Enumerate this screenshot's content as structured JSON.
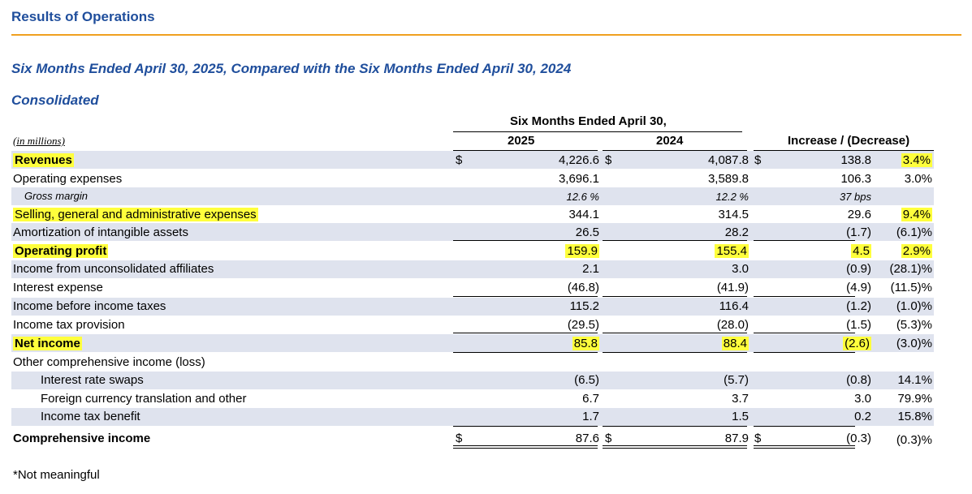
{
  "title": "Results of Operations",
  "subtitle": "Six Months Ended April 30, 2025, Compared with the Six Months Ended April 30, 2024",
  "section": "Consolidated",
  "units": "(in millions)",
  "group_header": "Six Months Ended April 30,",
  "col_2025": "2025",
  "col_2024": "2024",
  "col_change": "Increase / (Decrease)",
  "rows": [
    {
      "label": "Revenues",
      "v25": "4,226.6",
      "v24": "4,087.8",
      "inc": "138.8",
      "pct": "3.4%"
    },
    {
      "label": "Operating expenses",
      "v25": "3,696.1",
      "v24": "3,589.8",
      "inc": "106.3",
      "pct": "3.0%"
    },
    {
      "label": "Gross margin",
      "v25": "12.6 %",
      "v24": "12.2 %",
      "inc": "37 bps",
      "pct": ""
    },
    {
      "label": "Selling, general and administrative expenses",
      "v25": "344.1",
      "v24": "314.5",
      "inc": "29.6",
      "pct": "9.4%"
    },
    {
      "label": "Amortization of intangible assets",
      "v25": "26.5",
      "v24": "28.2",
      "inc": "(1.7)",
      "pct": "(6.1)%"
    },
    {
      "label": "Operating profit",
      "v25": "159.9",
      "v24": "155.4",
      "inc": "4.5",
      "pct": "2.9%"
    },
    {
      "label": "Income from unconsolidated affiliates",
      "v25": "2.1",
      "v24": "3.0",
      "inc": "(0.9)",
      "pct": "(28.1)%"
    },
    {
      "label": "Interest expense",
      "v25": "(46.8)",
      "v24": "(41.9)",
      "inc": "(4.9)",
      "pct": "(11.5)%"
    },
    {
      "label": "Income before income taxes",
      "v25": "115.2",
      "v24": "116.4",
      "inc": "(1.2)",
      "pct": "(1.0)%"
    },
    {
      "label": "Income tax provision",
      "v25": "(29.5)",
      "v24": "(28.0)",
      "inc": "(1.5)",
      "pct": "(5.3)%"
    },
    {
      "label": "Net income",
      "v25": "85.8",
      "v24": "88.4",
      "inc": "(2.6)",
      "pct": "(3.0)%"
    },
    {
      "label": "Other comprehensive income (loss)",
      "v25": "",
      "v24": "",
      "inc": "",
      "pct": ""
    },
    {
      "label": "Interest rate swaps",
      "v25": "(6.5)",
      "v24": "(5.7)",
      "inc": "(0.8)",
      "pct": "14.1%"
    },
    {
      "label": "Foreign currency translation and other",
      "v25": "6.7",
      "v24": "3.7",
      "inc": "3.0",
      "pct": "79.9%"
    },
    {
      "label": "Income tax benefit",
      "v25": "1.7",
      "v24": "1.5",
      "inc": "0.2",
      "pct": "15.8%"
    },
    {
      "label": "Comprehensive income",
      "v25": "87.6",
      "v24": "87.9",
      "inc": "(0.3)",
      "pct": "(0.3)%"
    }
  ],
  "dollar_sign": "$",
  "footnote": "*Not meaningful",
  "highlight_color": "#ffff3c",
  "heading_color": "#1f4e9c",
  "rule_color": "#f0a020"
}
